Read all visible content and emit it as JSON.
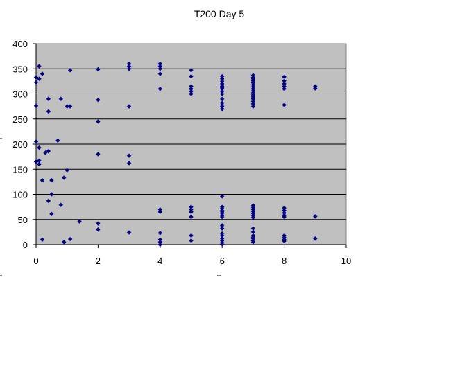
{
  "chart_data": {
    "type": "scatter",
    "title": "T200 Day 5",
    "xlabel": "",
    "ylabel": "",
    "xlim": [
      0,
      10
    ],
    "ylim": [
      0,
      400
    ],
    "xticks": [
      0,
      2,
      4,
      6,
      8,
      10
    ],
    "yticks": [
      0,
      50,
      100,
      150,
      200,
      250,
      300,
      350,
      400
    ],
    "grid": "horizontal",
    "legend": "none",
    "colors": {
      "plot_background": "#c0c0c0",
      "marker": "#000080",
      "gridline": "#000000"
    },
    "series": [
      {
        "points": [
          [
            0,
            333
          ],
          [
            0.1,
            355
          ],
          [
            0,
            323
          ],
          [
            0.2,
            340
          ],
          [
            0.1,
            330
          ],
          [
            0,
            276
          ],
          [
            0.4,
            290
          ],
          [
            0.4,
            265
          ],
          [
            0.8,
            290
          ],
          [
            1.1,
            347
          ],
          [
            1.0,
            275
          ],
          [
            1.1,
            275
          ],
          [
            0,
            205
          ],
          [
            0.1,
            193
          ],
          [
            0.3,
            183
          ],
          [
            0.4,
            186
          ],
          [
            0,
            165
          ],
          [
            0.1,
            167
          ],
          [
            0.1,
            160
          ],
          [
            0.7,
            207
          ],
          [
            1.0,
            148
          ],
          [
            0.9,
            133
          ],
          [
            0.2,
            128
          ],
          [
            0.5,
            128
          ],
          [
            0.5,
            100
          ],
          [
            0.4,
            87
          ],
          [
            0.8,
            79
          ],
          [
            0.5,
            61
          ],
          [
            1.4,
            46
          ],
          [
            0.2,
            10
          ],
          [
            0.9,
            5
          ],
          [
            1.1,
            11
          ],
          [
            2,
            349
          ],
          [
            2,
            288
          ],
          [
            2,
            245
          ],
          [
            2,
            180
          ],
          [
            2,
            42
          ],
          [
            2,
            30
          ],
          [
            3,
            360
          ],
          [
            3,
            355
          ],
          [
            3,
            350
          ],
          [
            3,
            275
          ],
          [
            3,
            177
          ],
          [
            3,
            162
          ],
          [
            3,
            24
          ],
          [
            4,
            360
          ],
          [
            4,
            355
          ],
          [
            4,
            350
          ],
          [
            4,
            340
          ],
          [
            4,
            310
          ],
          [
            4,
            70
          ],
          [
            4,
            65
          ],
          [
            4,
            23
          ],
          [
            4,
            10
          ],
          [
            4,
            5
          ],
          [
            4,
            0
          ],
          [
            5,
            347
          ],
          [
            5,
            335
          ],
          [
            5,
            315
          ],
          [
            5,
            310
          ],
          [
            5,
            305
          ],
          [
            5,
            300
          ],
          [
            5,
            75
          ],
          [
            5,
            70
          ],
          [
            5,
            65
          ],
          [
            5,
            55
          ],
          [
            5,
            18
          ],
          [
            5,
            8
          ],
          [
            6,
            335
          ],
          [
            6,
            330
          ],
          [
            6,
            325
          ],
          [
            6,
            320
          ],
          [
            6,
            318
          ],
          [
            6,
            315
          ],
          [
            6,
            312
          ],
          [
            6,
            310
          ],
          [
            6,
            305
          ],
          [
            6,
            300
          ],
          [
            6,
            290
          ],
          [
            6,
            282
          ],
          [
            6,
            278
          ],
          [
            6,
            275
          ],
          [
            6,
            270
          ],
          [
            6,
            96
          ],
          [
            6,
            75
          ],
          [
            6,
            72
          ],
          [
            6,
            68
          ],
          [
            6,
            65
          ],
          [
            6,
            62
          ],
          [
            6,
            58
          ],
          [
            6,
            55
          ],
          [
            6,
            38
          ],
          [
            6,
            32
          ],
          [
            6,
            22
          ],
          [
            6,
            18
          ],
          [
            6,
            12
          ],
          [
            6,
            8
          ],
          [
            6,
            4
          ],
          [
            6,
            1
          ],
          [
            7,
            337
          ],
          [
            7,
            333
          ],
          [
            7,
            330
          ],
          [
            7,
            326
          ],
          [
            7,
            322
          ],
          [
            7,
            318
          ],
          [
            7,
            314
          ],
          [
            7,
            310
          ],
          [
            7,
            306
          ],
          [
            7,
            302
          ],
          [
            7,
            298
          ],
          [
            7,
            294
          ],
          [
            7,
            290
          ],
          [
            7,
            285
          ],
          [
            7,
            280
          ],
          [
            7,
            275
          ],
          [
            7,
            78
          ],
          [
            7,
            74
          ],
          [
            7,
            70
          ],
          [
            7,
            66
          ],
          [
            7,
            62
          ],
          [
            7,
            58
          ],
          [
            7,
            54
          ],
          [
            7,
            32
          ],
          [
            7,
            25
          ],
          [
            7,
            18
          ],
          [
            7,
            15
          ],
          [
            7,
            12
          ],
          [
            7,
            8
          ],
          [
            7,
            5
          ],
          [
            8,
            334
          ],
          [
            8,
            326
          ],
          [
            8,
            320
          ],
          [
            8,
            315
          ],
          [
            8,
            310
          ],
          [
            8,
            278
          ],
          [
            8,
            73
          ],
          [
            8,
            68
          ],
          [
            8,
            63
          ],
          [
            8,
            58
          ],
          [
            8,
            55
          ],
          [
            8,
            18
          ],
          [
            8,
            14
          ],
          [
            8,
            10
          ],
          [
            8,
            7
          ],
          [
            9,
            315
          ],
          [
            9,
            311
          ],
          [
            9,
            56
          ],
          [
            9,
            12
          ]
        ]
      }
    ]
  }
}
